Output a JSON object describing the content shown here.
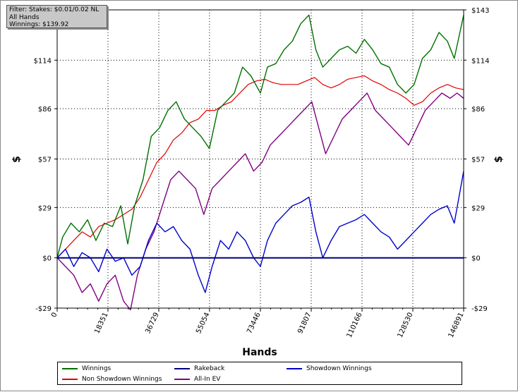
{
  "filter": {
    "line1": "Filter: Stakes: $0.01/0.02 NL",
    "line2": "All Hands",
    "line3": "Winnings: $139.92"
  },
  "chart_data": {
    "type": "line",
    "xlabel": "Hands",
    "ylabel": "$",
    "y_tick_labels": [
      "$143",
      "$114",
      "$86",
      "$57",
      "$29",
      "$0",
      "-$29"
    ],
    "y_tick_values": [
      143,
      114,
      86,
      57,
      29,
      0,
      -29
    ],
    "x_tick_labels": [
      "0",
      "18351",
      "36729",
      "55054",
      "73446",
      "91807",
      "110166",
      "128530",
      "146891"
    ],
    "x_tick_values": [
      0,
      18351,
      36729,
      55054,
      73446,
      91807,
      110166,
      128530,
      146891
    ],
    "xlim": [
      0,
      146891
    ],
    "ylim": [
      -29,
      143
    ],
    "grid": true,
    "legend_position": "bottom",
    "series": [
      {
        "name": "Winnings",
        "color": "#007000",
        "x": [
          0,
          2000,
          5000,
          8000,
          11000,
          14000,
          17000,
          20000,
          23000,
          25500,
          28000,
          31000,
          34000,
          37000,
          40000,
          43000,
          46000,
          49000,
          52000,
          55000,
          58000,
          61000,
          64000,
          67000,
          70000,
          73446,
          76000,
          79000,
          82000,
          85000,
          88000,
          91000,
          93500,
          96000,
          99000,
          102000,
          105000,
          108000,
          111000,
          114000,
          117000,
          120000,
          123000,
          126000,
          129000,
          132000,
          135000,
          138000,
          141000,
          143500,
          146891
        ],
        "y": [
          0,
          12,
          20,
          15,
          22,
          10,
          20,
          18,
          30,
          8,
          30,
          45,
          70,
          75,
          85,
          90,
          80,
          75,
          70,
          63,
          85,
          90,
          95,
          110,
          105,
          95,
          110,
          112,
          120,
          125,
          135,
          140,
          120,
          110,
          115,
          120,
          122,
          118,
          126,
          120,
          112,
          110,
          100,
          95,
          100,
          115,
          120,
          130,
          125,
          115,
          140
        ]
      },
      {
        "name": "Rakeback",
        "color": "#000080",
        "x": [
          0,
          146891
        ],
        "y": [
          0,
          0
        ]
      },
      {
        "name": "Showdown Winnings",
        "color": "#0000cc",
        "x": [
          0,
          3000,
          6000,
          9000,
          12000,
          15000,
          18000,
          21000,
          24000,
          27000,
          30000,
          33000,
          36000,
          39000,
          42000,
          45000,
          48000,
          51000,
          53500,
          56000,
          59000,
          62000,
          65000,
          68000,
          71000,
          73446,
          76000,
          79000,
          82000,
          85000,
          88000,
          91000,
          93500,
          96000,
          99000,
          102000,
          105000,
          108000,
          111000,
          114000,
          117000,
          120000,
          123000,
          126000,
          129000,
          132000,
          135000,
          138000,
          141000,
          143500,
          146891
        ],
        "y": [
          0,
          5,
          -5,
          3,
          0,
          -8,
          5,
          -2,
          0,
          -10,
          -5,
          10,
          20,
          15,
          18,
          10,
          5,
          -10,
          -20,
          -5,
          10,
          5,
          15,
          10,
          0,
          -5,
          10,
          20,
          25,
          30,
          32,
          35,
          15,
          0,
          10,
          18,
          20,
          22,
          25,
          20,
          15,
          12,
          5,
          10,
          15,
          20,
          25,
          28,
          30,
          20,
          50
        ]
      },
      {
        "name": "Non Showdown Winnings",
        "color": "#e00000",
        "x": [
          0,
          3000,
          6000,
          9000,
          12000,
          15000,
          18000,
          21000,
          24000,
          27000,
          30000,
          33000,
          36000,
          39000,
          42000,
          45000,
          48000,
          51000,
          54000,
          57000,
          60000,
          63000,
          66000,
          69000,
          72000,
          75000,
          78000,
          81000,
          84000,
          87000,
          90000,
          93000,
          96000,
          99000,
          102000,
          105000,
          108000,
          111000,
          114000,
          117000,
          120000,
          123000,
          126000,
          129000,
          132000,
          135000,
          138000,
          141000,
          144000,
          146891
        ],
        "y": [
          0,
          5,
          10,
          15,
          12,
          18,
          20,
          22,
          25,
          28,
          35,
          45,
          55,
          60,
          68,
          72,
          78,
          80,
          85,
          85,
          88,
          90,
          95,
          100,
          102,
          103,
          101,
          100,
          100,
          100,
          102,
          104,
          100,
          98,
          100,
          103,
          104,
          105,
          102,
          100,
          97,
          95,
          92,
          88,
          90,
          95,
          98,
          100,
          98,
          97
        ]
      },
      {
        "name": "All-In EV",
        "color": "#800080",
        "x": [
          0,
          3000,
          6000,
          9000,
          12000,
          15000,
          18000,
          21000,
          24000,
          26500,
          29000,
          32000,
          35000,
          38000,
          41000,
          44000,
          47000,
          50000,
          53000,
          56000,
          59000,
          62000,
          65000,
          68000,
          71000,
          74000,
          77000,
          80000,
          83000,
          86000,
          89000,
          92000,
          94500,
          97000,
          100000,
          103000,
          106000,
          109000,
          112000,
          115000,
          118000,
          121000,
          124000,
          127000,
          130000,
          133000,
          136000,
          139000,
          142000,
          144500,
          146891
        ],
        "y": [
          0,
          -5,
          -10,
          -20,
          -15,
          -25,
          -15,
          -10,
          -25,
          -30,
          -10,
          5,
          15,
          30,
          45,
          50,
          45,
          40,
          25,
          40,
          45,
          50,
          55,
          60,
          50,
          55,
          65,
          70,
          75,
          80,
          85,
          90,
          75,
          60,
          70,
          80,
          85,
          90,
          95,
          85,
          80,
          75,
          70,
          65,
          75,
          85,
          90,
          95,
          92,
          95,
          92
        ]
      }
    ]
  },
  "legend": {
    "items": [
      {
        "label": "Winnings",
        "color": "#007000"
      },
      {
        "label": "Rakeback",
        "color": "#000080"
      },
      {
        "label": "Showdown Winnings",
        "color": "#0000cc"
      },
      {
        "label": "Non Showdown Winnings",
        "color": "#e00000"
      },
      {
        "label": "All-In EV",
        "color": "#800080"
      }
    ]
  }
}
